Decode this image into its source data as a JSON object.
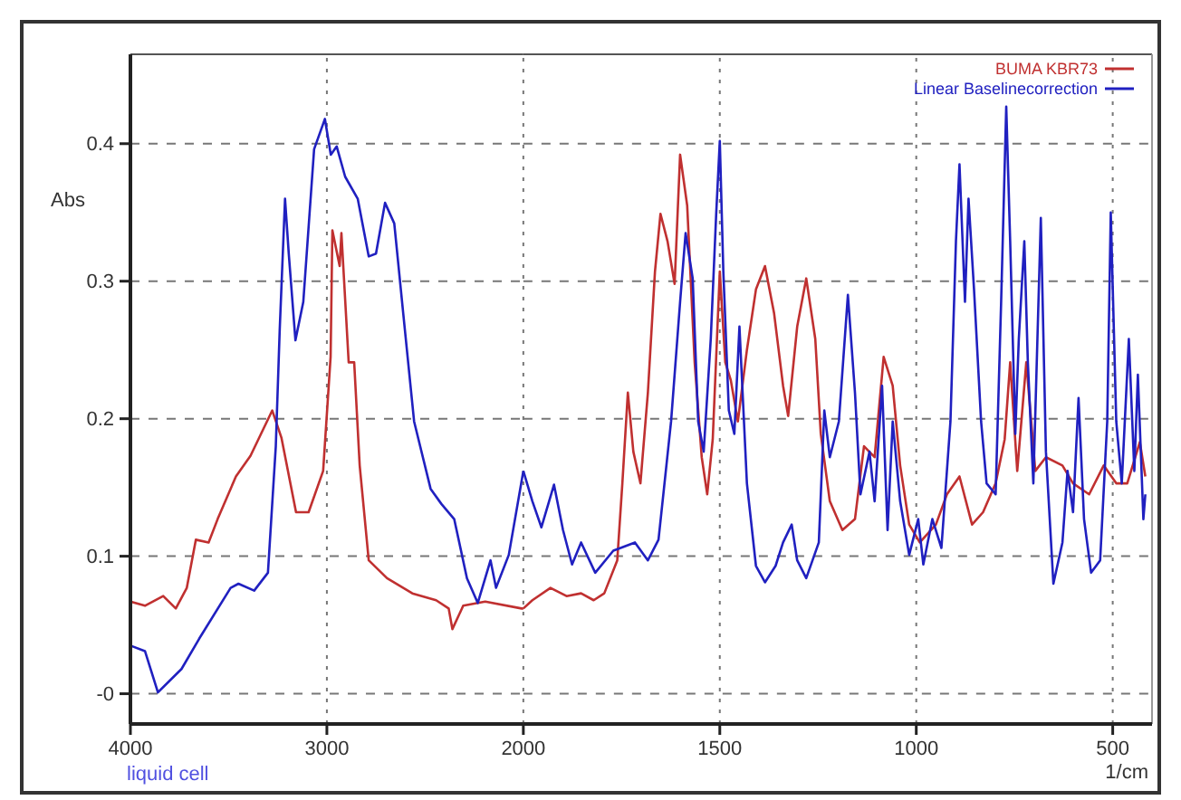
{
  "chart_data": [
    {
      "type": "line",
      "ylabel": "Abs",
      "annotations": [
        "liquid cell"
      ],
      "xlim": [
        4000,
        2000
      ],
      "xticks": [
        4000,
        3000,
        2000
      ],
      "ylim": [
        -0.022,
        0.465
      ],
      "yticks": [
        {
          "value": 0,
          "label": "-0"
        },
        0.1,
        0.2,
        0.3,
        0.4
      ],
      "grid": true,
      "marker": "none",
      "line_style": "solid",
      "series": [
        {
          "color": "#c03030",
          "x": [
            4000,
            3926,
            3833,
            3769,
            3713,
            3667,
            3602,
            3556,
            3463,
            3389,
            3278,
            3231,
            3157,
            3093,
            3019,
            2981,
            2972,
            2935,
            2926,
            2889,
            2861,
            2833,
            2787,
            2694,
            2565,
            2444,
            2380,
            2361,
            2306,
            2194,
            2009,
            2000
          ],
          "values": [
            0.067,
            0.064,
            0.071,
            0.062,
            0.077,
            0.112,
            0.11,
            0.127,
            0.158,
            0.173,
            0.206,
            0.186,
            0.132,
            0.132,
            0.162,
            0.245,
            0.337,
            0.311,
            0.335,
            0.241,
            0.241,
            0.166,
            0.097,
            0.084,
            0.073,
            0.068,
            0.062,
            0.047,
            0.064,
            0.067,
            0.062,
            0.062
          ]
        },
        {
          "color": "#2020c0",
          "x": [
            4000,
            3926,
            3860,
            3740,
            3650,
            3490,
            3450,
            3370,
            3300,
            3260,
            3240,
            3213,
            3194,
            3160,
            3120,
            3065,
            3010,
            2980,
            2950,
            2907,
            2843,
            2787,
            2750,
            2704,
            2657,
            2611,
            2556,
            2472,
            2417,
            2352,
            2287,
            2232,
            2167,
            2139,
            2074,
            2000
          ],
          "values": [
            0.035,
            0.031,
            0.001,
            0.018,
            0.04,
            0.077,
            0.08,
            0.075,
            0.088,
            0.18,
            0.265,
            0.36,
            0.32,
            0.257,
            0.285,
            0.396,
            0.418,
            0.392,
            0.398,
            0.376,
            0.36,
            0.318,
            0.32,
            0.357,
            0.342,
            0.276,
            0.198,
            0.149,
            0.138,
            0.127,
            0.084,
            0.066,
            0.097,
            0.077,
            0.101,
            0.162
          ]
        }
      ]
    },
    {
      "type": "line",
      "xlabel": "1/cm",
      "xlim": [
        2000,
        400
      ],
      "xticks": [
        1500,
        1000,
        500
      ],
      "ylim": [
        -0.022,
        0.465
      ],
      "yticks": [
        0,
        0.1,
        0.2,
        0.3,
        0.4
      ],
      "grid": true,
      "legend": "top right",
      "marker": "none",
      "line_style": "solid",
      "tick_labels": "x",
      "series": [
        {
          "name": "BUMA KBR73",
          "color": "#c03030",
          "x": [
            2000,
            1977,
            1931,
            1890,
            1853,
            1821,
            1794,
            1761,
            1748,
            1734,
            1720,
            1702,
            1683,
            1665,
            1651,
            1633,
            1615,
            1601,
            1583,
            1564,
            1546,
            1532,
            1518,
            1500,
            1486,
            1472,
            1454,
            1431,
            1408,
            1385,
            1362,
            1339,
            1326,
            1303,
            1280,
            1257,
            1243,
            1220,
            1188,
            1156,
            1133,
            1106,
            1083,
            1060,
            1041,
            1018,
            991,
            950,
            922,
            890,
            858,
            830,
            798,
            775,
            761,
            743,
            720,
            697,
            670,
            628,
            601,
            560,
            523,
            491,
            463,
            431,
            417
          ],
          "values": [
            0.062,
            0.068,
            0.077,
            0.071,
            0.073,
            0.068,
            0.073,
            0.097,
            0.153,
            0.219,
            0.176,
            0.153,
            0.219,
            0.307,
            0.349,
            0.329,
            0.298,
            0.392,
            0.355,
            0.241,
            0.172,
            0.145,
            0.185,
            0.307,
            0.241,
            0.228,
            0.198,
            0.25,
            0.294,
            0.311,
            0.277,
            0.224,
            0.202,
            0.267,
            0.302,
            0.258,
            0.189,
            0.14,
            0.119,
            0.127,
            0.18,
            0.172,
            0.245,
            0.224,
            0.166,
            0.123,
            0.11,
            0.123,
            0.145,
            0.158,
            0.123,
            0.132,
            0.153,
            0.185,
            0.241,
            0.162,
            0.241,
            0.162,
            0.172,
            0.166,
            0.153,
            0.145,
            0.166,
            0.153,
            0.153,
            0.183,
            0.158
          ]
        },
        {
          "name": "Linear Baselinecorrection",
          "color": "#2020c0",
          "x": [
            2000,
            1977,
            1954,
            1922,
            1899,
            1876,
            1853,
            1817,
            1771,
            1716,
            1683,
            1656,
            1624,
            1601,
            1587,
            1569,
            1555,
            1541,
            1523,
            1509,
            1500,
            1491,
            1477,
            1463,
            1450,
            1431,
            1408,
            1385,
            1358,
            1339,
            1317,
            1303,
            1280,
            1248,
            1234,
            1220,
            1197,
            1174,
            1156,
            1142,
            1119,
            1106,
            1087,
            1073,
            1060,
            1041,
            1018,
            995,
            982,
            959,
            936,
            913,
            899,
            890,
            876,
            867,
            853,
            835,
            821,
            798,
            784,
            771,
            761,
            748,
            739,
            725,
            716,
            702,
            683,
            670,
            651,
            628,
            615,
            601,
            587,
            573,
            555,
            532,
            514,
            505,
            491,
            477,
            459,
            445,
            436,
            422,
            417
          ],
          "values": [
            0.162,
            0.14,
            0.121,
            0.152,
            0.119,
            0.094,
            0.11,
            0.088,
            0.104,
            0.11,
            0.097,
            0.112,
            0.198,
            0.285,
            0.335,
            0.302,
            0.198,
            0.176,
            0.258,
            0.35,
            0.402,
            0.307,
            0.206,
            0.189,
            0.267,
            0.153,
            0.093,
            0.081,
            0.093,
            0.11,
            0.123,
            0.097,
            0.084,
            0.11,
            0.206,
            0.172,
            0.198,
            0.29,
            0.219,
            0.145,
            0.176,
            0.14,
            0.224,
            0.119,
            0.198,
            0.14,
            0.101,
            0.127,
            0.094,
            0.127,
            0.106,
            0.198,
            0.329,
            0.385,
            0.285,
            0.36,
            0.294,
            0.198,
            0.153,
            0.145,
            0.285,
            0.427,
            0.329,
            0.189,
            0.258,
            0.329,
            0.241,
            0.153,
            0.346,
            0.176,
            0.08,
            0.11,
            0.162,
            0.132,
            0.215,
            0.127,
            0.088,
            0.097,
            0.198,
            0.35,
            0.198,
            0.153,
            0.258,
            0.162,
            0.232,
            0.127,
            0.145
          ]
        }
      ]
    }
  ]
}
